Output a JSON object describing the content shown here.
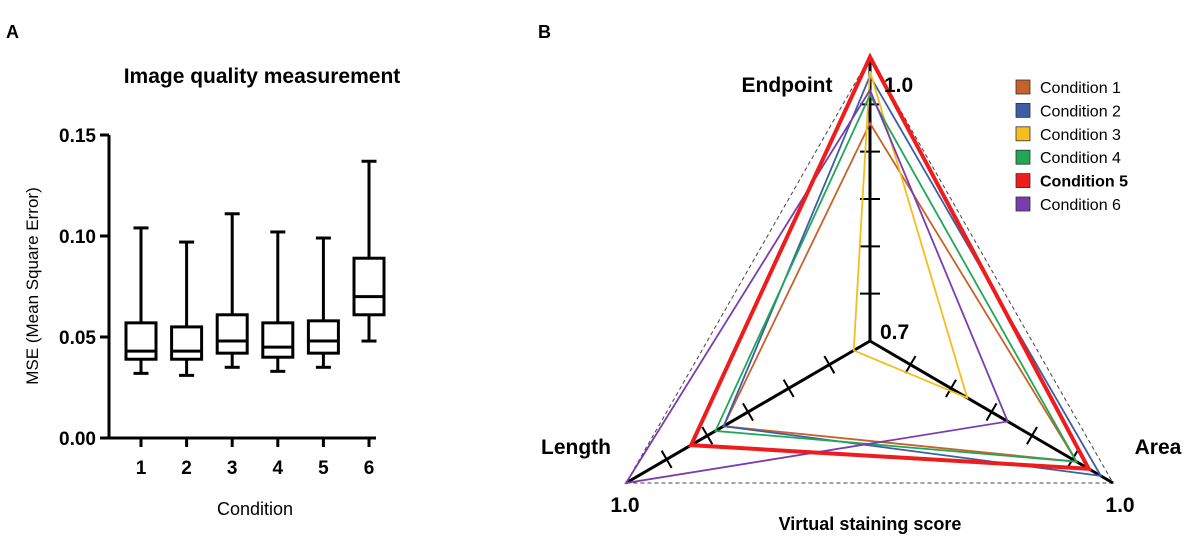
{
  "panels": {
    "a_label": "A",
    "b_label": "B"
  },
  "chart_data": [
    {
      "type": "box",
      "title": "Image quality measurement",
      "xlabel": "Condition",
      "ylabel": "MSE (Mean Square Error)",
      "ylim": [
        0,
        0.15
      ],
      "yticks": [
        "0.00",
        "0.05",
        "0.10",
        "0.15"
      ],
      "categories": [
        "1",
        "2",
        "3",
        "4",
        "5",
        "6"
      ],
      "boxes": [
        {
          "min": 0.032,
          "q1": 0.039,
          "median": 0.043,
          "q3": 0.057,
          "max": 0.104
        },
        {
          "min": 0.031,
          "q1": 0.039,
          "median": 0.043,
          "q3": 0.055,
          "max": 0.097
        },
        {
          "min": 0.035,
          "q1": 0.042,
          "median": 0.048,
          "q3": 0.061,
          "max": 0.111
        },
        {
          "min": 0.033,
          "q1": 0.04,
          "median": 0.045,
          "q3": 0.057,
          "max": 0.102
        },
        {
          "min": 0.035,
          "q1": 0.042,
          "median": 0.048,
          "q3": 0.058,
          "max": 0.099
        },
        {
          "min": 0.048,
          "q1": 0.061,
          "median": 0.07,
          "q3": 0.089,
          "max": 0.137
        }
      ]
    },
    {
      "type": "radar",
      "axes": [
        "Endpoint",
        "Area",
        "Length"
      ],
      "xlabel": "Virtual staining score",
      "range": [
        0.7,
        1.0
      ],
      "center_label": "0.7",
      "max_labels": [
        "1.0",
        "1.0",
        "1.0"
      ],
      "legend_position": "top-right",
      "series": [
        {
          "name": "Condition 1",
          "color": "#c8622a",
          "values": [
            0.93,
            0.955,
            0.88
          ]
        },
        {
          "name": "Condition 2",
          "color": "#3c5ea8",
          "values": [
            0.98,
            0.985,
            0.88
          ]
        },
        {
          "name": "Condition 3",
          "color": "#f5bd1f",
          "values": [
            0.985,
            0.82,
            0.72
          ]
        },
        {
          "name": "Condition 4",
          "color": "#1fa857",
          "values": [
            0.96,
            0.955,
            0.89
          ]
        },
        {
          "name": "Condition 5",
          "color": "#ee1c1c",
          "values": [
            1.0,
            0.97,
            0.92
          ],
          "bold": true
        },
        {
          "name": "Condition 6",
          "color": "#7a3db0",
          "values": [
            0.965,
            0.87,
            1.0
          ]
        }
      ]
    }
  ]
}
